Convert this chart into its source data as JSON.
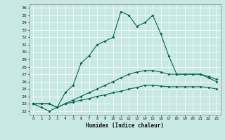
{
  "xlabel": "Humidex (Indice chaleur)",
  "bg_color": "#c8e8e4",
  "line_color": "#006655",
  "xlim": [
    -0.5,
    23.5
  ],
  "ylim": [
    21.5,
    36.5
  ],
  "yticks": [
    22,
    23,
    24,
    25,
    26,
    27,
    28,
    29,
    30,
    31,
    32,
    33,
    34,
    35,
    36
  ],
  "xticks": [
    0,
    1,
    2,
    3,
    4,
    5,
    6,
    7,
    8,
    9,
    10,
    11,
    12,
    13,
    14,
    15,
    16,
    17,
    18,
    19,
    20,
    21,
    22,
    23
  ],
  "line1_x": [
    0,
    1,
    2,
    3,
    4,
    5,
    6,
    7,
    8,
    9,
    10,
    11,
    12,
    13,
    14,
    15,
    16,
    17,
    18,
    19,
    20,
    21,
    22,
    23
  ],
  "line1_y": [
    23.0,
    22.5,
    22.0,
    22.5,
    24.5,
    25.5,
    28.5,
    29.5,
    31.0,
    31.5,
    32.0,
    35.5,
    35.0,
    33.5,
    34.0,
    35.0,
    32.5,
    29.5,
    27.0,
    27.0,
    27.0,
    27.0,
    26.5,
    26.0
  ],
  "line2_x": [
    0,
    1,
    2,
    3,
    4,
    5,
    6,
    7,
    8,
    9,
    10,
    11,
    12,
    13,
    14,
    15,
    16,
    17,
    18,
    19,
    20,
    21,
    22,
    23
  ],
  "line2_y": [
    23.0,
    23.0,
    23.0,
    22.5,
    23.0,
    23.5,
    24.0,
    24.5,
    25.0,
    25.5,
    26.0,
    26.5,
    27.0,
    27.3,
    27.5,
    27.5,
    27.3,
    27.0,
    27.0,
    27.0,
    27.0,
    27.0,
    26.7,
    26.3
  ],
  "line3_x": [
    0,
    1,
    2,
    3,
    4,
    5,
    6,
    7,
    8,
    9,
    10,
    11,
    12,
    13,
    14,
    15,
    16,
    17,
    18,
    19,
    20,
    21,
    22,
    23
  ],
  "line3_y": [
    23.0,
    23.0,
    23.0,
    22.5,
    23.0,
    23.2,
    23.5,
    23.7,
    24.0,
    24.2,
    24.5,
    24.7,
    25.0,
    25.2,
    25.5,
    25.5,
    25.4,
    25.3,
    25.3,
    25.3,
    25.3,
    25.3,
    25.2,
    25.0
  ],
  "grid_color": "#b0d4cc",
  "spine_color": "#888888"
}
